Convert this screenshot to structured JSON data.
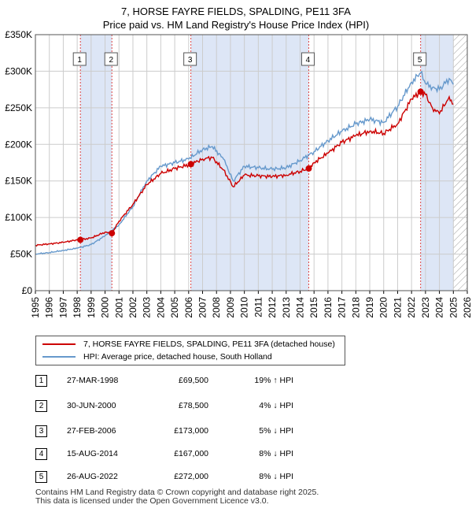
{
  "title": "7, HORSE FAYRE FIELDS, SPALDING, PE11 3FA",
  "subtitle": "Price paid vs. HM Land Registry's House Price Index (HPI)",
  "colors": {
    "property": "#cc0000",
    "hpi": "#6699cc",
    "shade": "#dde6f6",
    "grid": "#cccccc",
    "vline": "#dd4444"
  },
  "legend": {
    "property_label": "7, HORSE FAYRE FIELDS, SPALDING, PE11 3FA (detached house)",
    "hpi_label": "HPI: Average price, detached house, South Holland"
  },
  "sales": [
    {
      "num": "1",
      "date": "27-MAR-1998",
      "price": "£69,500",
      "hpi": "19% ↑ HPI"
    },
    {
      "num": "2",
      "date": "30-JUN-2000",
      "price": "£78,500",
      "hpi": "4% ↓ HPI"
    },
    {
      "num": "3",
      "date": "27-FEB-2006",
      "price": "£173,000",
      "hpi": "5% ↓ HPI"
    },
    {
      "num": "4",
      "date": "15-AUG-2014",
      "price": "£167,000",
      "hpi": "8% ↓ HPI"
    },
    {
      "num": "5",
      "date": "26-AUG-2022",
      "price": "£272,000",
      "hpi": "8% ↓ HPI"
    }
  ],
  "footer": {
    "line1": "Contains HM Land Registry data © Crown copyright and database right 2025.",
    "line2": "This data is licensed under the Open Government Licence v3.0."
  },
  "chart_data": {
    "type": "line",
    "title": "7, HORSE FAYRE FIELDS, SPALDING, PE11 3FA",
    "subtitle": "Price paid vs. HM Land Registry's House Price Index (HPI)",
    "xlim": [
      1995,
      2026
    ],
    "ylim": [
      0,
      350000
    ],
    "y_ticks": [
      0,
      50000,
      100000,
      150000,
      200000,
      250000,
      300000,
      350000
    ],
    "y_tick_labels": [
      "£0",
      "£50K",
      "£100K",
      "£150K",
      "£200K",
      "£250K",
      "£300K",
      "£350K"
    ],
    "x_ticks": [
      1995,
      1996,
      1997,
      1998,
      1999,
      2000,
      2001,
      2002,
      2003,
      2004,
      2005,
      2006,
      2007,
      2008,
      2009,
      2010,
      2011,
      2012,
      2013,
      2014,
      2015,
      2016,
      2017,
      2018,
      2019,
      2020,
      2021,
      2022,
      2023,
      2024,
      2025,
      2026
    ],
    "shaded_periods": [
      [
        1998.23,
        2000.49
      ],
      [
        2006.16,
        2014.62
      ],
      [
        2022.65,
        2025.0
      ]
    ],
    "future_hatch_from": 2025.0,
    "markers": [
      {
        "label": "1",
        "x": 1998.23,
        "y": 69500
      },
      {
        "label": "2",
        "x": 2000.49,
        "y": 78500
      },
      {
        "label": "3",
        "x": 2006.16,
        "y": 173000
      },
      {
        "label": "4",
        "x": 2014.62,
        "y": 167000
      },
      {
        "label": "5",
        "x": 2022.65,
        "y": 272000
      }
    ],
    "series": [
      {
        "name": "7, HORSE FAYRE FIELDS, SPALDING, PE11 3FA (detached house)",
        "color": "#cc0000",
        "x": [
          1995,
          1996,
          1997,
          1998,
          1998.23,
          1999,
          2000,
          2000.49,
          2001,
          2002,
          2003,
          2004,
          2005,
          2006,
          2006.16,
          2007,
          2007.7,
          2008.5,
          2009.2,
          2010,
          2011,
          2012,
          2013,
          2014,
          2014.62,
          2015,
          2016,
          2017,
          2018,
          2019,
          2020,
          2021,
          2022,
          2022.65,
          2023,
          2023.5,
          2024,
          2024.7,
          2025
        ],
        "values": [
          62000,
          64000,
          66000,
          69500,
          69500,
          72000,
          80000,
          78500,
          95000,
          118000,
          145000,
          160000,
          167000,
          172000,
          173000,
          180000,
          182000,
          165000,
          142000,
          158000,
          157000,
          156000,
          158000,
          163000,
          167000,
          175000,
          188000,
          203000,
          212000,
          218000,
          215000,
          228000,
          262000,
          272000,
          268000,
          250000,
          242000,
          265000,
          255000
        ]
      },
      {
        "name": "HPI: Average price, detached house, South Holland",
        "color": "#6699cc",
        "x": [
          1995,
          1996,
          1997,
          1998,
          1999,
          2000,
          2001,
          2002,
          2003,
          2004,
          2005,
          2006,
          2007,
          2007.7,
          2008.5,
          2009.2,
          2010,
          2011,
          2012,
          2013,
          2014,
          2015,
          2016,
          2017,
          2018,
          2019,
          2020,
          2021,
          2022,
          2022.65,
          2023,
          2023.5,
          2024,
          2024.7,
          2025
        ],
        "values": [
          50000,
          52000,
          55000,
          58000,
          63000,
          75000,
          90000,
          115000,
          150000,
          170000,
          175000,
          180000,
          193000,
          197000,
          180000,
          150000,
          170000,
          168000,
          166000,
          168000,
          178000,
          190000,
          205000,
          218000,
          228000,
          234000,
          230000,
          252000,
          285000,
          298000,
          283000,
          278000,
          275000,
          290000,
          282000
        ]
      }
    ]
  }
}
